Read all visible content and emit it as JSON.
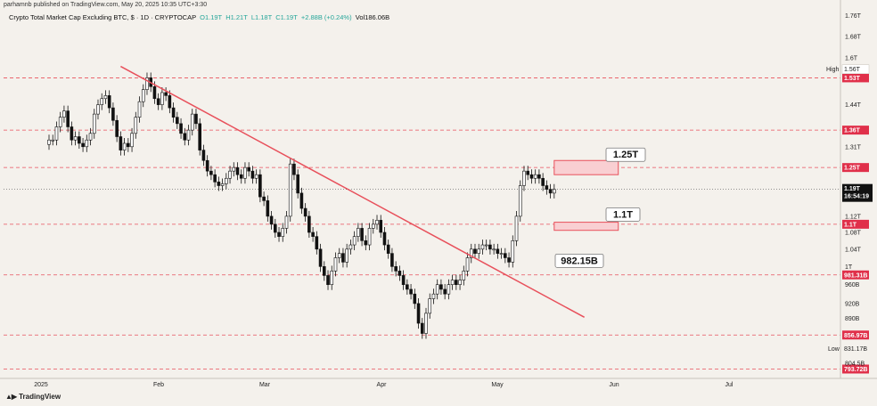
{
  "header": {
    "publisher": "parhamnb published on TradingView.com, May 20, 2025 10:35 UTC+3:30",
    "symbol": "Crypto Total Market Cap Excluding BTC, $ · 1D · CRYPTOCAP",
    "open": "O1.19T",
    "high": "H1.21T",
    "low": "L1.18T",
    "close": "C1.19T",
    "change": "+2.88B (+0.24%)",
    "volume": "Vol186.06B"
  },
  "brand": {
    "name": "TradingView",
    "logo_icon": "tradingview-logo-icon"
  },
  "colors": {
    "background": "#f4f1ec",
    "up": "#ffffff",
    "down": "#111111",
    "level_line": "#e8505b",
    "trendline": "#e8505b",
    "tag_bg": "#e0304a",
    "zone_fill": "#f9cfd2",
    "current_tag_bg": "#111111"
  },
  "chart_data": {
    "type": "candlestick",
    "x_axis": {
      "type": "date",
      "labels": [
        "2025",
        "Feb",
        "Mar",
        "Apr",
        "May",
        "Jun",
        "Jul"
      ]
    },
    "y_axis": {
      "scale": "log",
      "range": [
        785,
        1780
      ],
      "unit": "USD billions",
      "tick_labels": [
        "1.76T",
        "1.68T",
        "1.6T",
        "1.44T",
        "1.31T",
        "1.12T",
        "1.08T",
        "1.04T",
        "1T",
        "960B",
        "920B",
        "890B",
        "804.5B"
      ]
    },
    "horizontal_levels": [
      {
        "value": 1530,
        "label": "1.53T"
      },
      {
        "value": 1360,
        "label": "1.36T"
      },
      {
        "value": 1250,
        "label": "1.25T"
      },
      {
        "value": 1100,
        "label": "1.1T"
      },
      {
        "value": 981.31,
        "label": "981.31B"
      },
      {
        "value": 856.97,
        "label": "856.97B"
      },
      {
        "value": 793.72,
        "label": "793.72B"
      }
    ],
    "high_marker": {
      "label": "High",
      "value_label": "1.56T",
      "value": 1560
    },
    "low_marker": {
      "label": "Low",
      "value_label": "831.17B",
      "value": 831.17
    },
    "current_price": {
      "label": "1.19T",
      "countdown": "16:54:19",
      "value": 1190
    },
    "trendline": {
      "from": {
        "date": "2025-01-19",
        "value": 1570
      },
      "to": {
        "date": "2025-05-22",
        "value": 892
      }
    },
    "zones": [
      {
        "top": 1270,
        "bottom": 1230,
        "from": "2025-05-14",
        "to": "2025-05-31",
        "label": "1.25T"
      },
      {
        "top": 1105,
        "bottom": 1085,
        "from": "2025-05-14",
        "to": "2025-05-31",
        "label": "1.1T"
      }
    ],
    "callouts": [
      {
        "label": "1.25T",
        "value": 1270
      },
      {
        "label": "1.1T",
        "value": 1110
      },
      {
        "label": "982.15B",
        "value": 1000
      }
    ],
    "candles_summary": {
      "first_date": "2024-12-31",
      "closes": [
        1330,
        1330,
        1370,
        1400,
        1420,
        1370,
        1330,
        1340,
        1320,
        1310,
        1330,
        1350,
        1410,
        1440,
        1460,
        1470,
        1430,
        1390,
        1340,
        1300,
        1320,
        1310,
        1350,
        1400,
        1450,
        1490,
        1530,
        1500,
        1460,
        1440,
        1480,
        1470,
        1430,
        1400,
        1380,
        1350,
        1330,
        1360,
        1410,
        1380,
        1300,
        1270,
        1240,
        1230,
        1210,
        1200,
        1205,
        1220,
        1240,
        1250,
        1230,
        1220,
        1250,
        1240,
        1220,
        1230,
        1170,
        1160,
        1120,
        1100,
        1080,
        1070,
        1090,
        1120,
        1260,
        1230,
        1180,
        1140,
        1120,
        1080,
        1070,
        1040,
        1000,
        980,
        960,
        990,
        1020,
        1030,
        1010,
        1040,
        1050,
        1070,
        1090,
        1060,
        1050,
        1090,
        1100,
        1110,
        1080,
        1050,
        1030,
        1000,
        990,
        980,
        960,
        950,
        940,
        920,
        880,
        860,
        900,
        930,
        940,
        960,
        950,
        940,
        960,
        970,
        960,
        970,
        990,
        1020,
        1040,
        1030,
        1040,
        1050,
        1050,
        1040,
        1040,
        1030,
        1030,
        1020,
        1010,
        1060,
        1120,
        1200,
        1240,
        1230,
        1220,
        1230,
        1220,
        1200,
        1190,
        1180,
        1190
      ]
    }
  }
}
